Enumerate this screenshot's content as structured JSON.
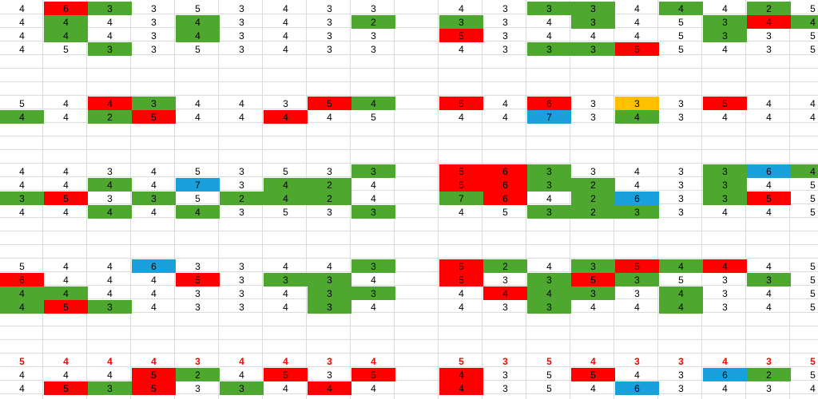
{
  "colors": {
    "r": "#ff0000",
    "g": "#4ea72e",
    "b": "#1aa0db",
    "y": "#ffc000",
    "grid": "#dcdcdc",
    "red_text": "#ff0000"
  },
  "rows": [
    {
      "top": "4 6r 3g 3 5 3 4 3 3",
      "bottom": "4 3 3g 3g 4 4g 4 2g 5"
    },
    {
      "top": "4 4g 4 3 4g 3 4 3 2g",
      "bottom": "3g 3 4 3g 4 5 3g 4r 4g"
    },
    {
      "top": "4 4g 4 3 4g 3 4 3 3",
      "bottom": "5r 3 4 4 4 5 3g 3 5"
    },
    {
      "top": "4 5 3g 3 5 3 4 3 3",
      "bottom": "4 3 3g 3g 5r 5 4 3 5"
    },
    {
      "top": "",
      "bottom": ""
    },
    {
      "top": "",
      "bottom": ""
    },
    {
      "top": "",
      "bottom": ""
    },
    {
      "top": "5 4 4r 3g 4 4 3 5r 4g",
      "bottom": "5r 4 6r 3 3y 3 5r 4 4"
    },
    {
      "top": "4g 4 2g 5r 4 4 4r 4 5",
      "bottom": "4 4 7b 3 4g 3 4 4 4"
    },
    {
      "top": "",
      "bottom": ""
    },
    {
      "top": "",
      "bottom": ""
    },
    {
      "top": "",
      "bottom": ""
    },
    {
      "top": "4 4 3 4 5 3 5 3 3g",
      "bottom": "5r 6r 3g 3 4 3 3g 6b 4g"
    },
    {
      "top": "4 4 4g 4 7b 3 4g 2g 4",
      "bottom": "5r 6r 3g 2g 4 3 3g 4 5"
    },
    {
      "top": "3g 5r 3 3g 5 2g 4g 2g 4",
      "bottom": "7g 6r 4 2g 6b 3 3g 5r 5"
    },
    {
      "top": "4 4 4g 4 4g 3 5 3 3g",
      "bottom": "4 5 3g 2g 3g 3 4 4 5"
    },
    {
      "top": "",
      "bottom": ""
    },
    {
      "top": "",
      "bottom": ""
    },
    {
      "top": "",
      "bottom": ""
    },
    {
      "top": "5 4 4 6b 3 3 4 4 3g",
      "bottom": "5r 2g 4 3g 5r 4g 4r 4 5"
    },
    {
      "top": "6r 4 4 4 5r 3 3g 3g 4",
      "bottom": "5r 3 3g 5r 3g 5 3 3g 5"
    },
    {
      "top": "4g 4g 4 4 3 3 4 3g 3g",
      "bottom": "4 4r 4g 3g 3 4g 3 4 5"
    },
    {
      "top": "4g 5r 3g 4 3 3 4 3g 4",
      "bottom": "4 3 3g 4 4 4g 3 4 5"
    },
    {
      "top": "",
      "bottom": ""
    },
    {
      "top": "",
      "bottom": ""
    },
    {
      "top": "",
      "bottom": ""
    },
    {
      "top": "5t 4t 4t 4t 3t 4t 4t 3t 4t",
      "bottom": "5t 3t 5t 4t 3t 3t 4t 3t 5t"
    },
    {
      "top": "4 4 4 5r 2g 4 5r 3 5r",
      "bottom": "4r 3 5 5r 4 3 6b 2g 5"
    },
    {
      "top": "4 5r 3g 5r 3 3g 4 4r 4",
      "bottom": "4r 3 5 4 6b 3 4 3 4"
    }
  ]
}
